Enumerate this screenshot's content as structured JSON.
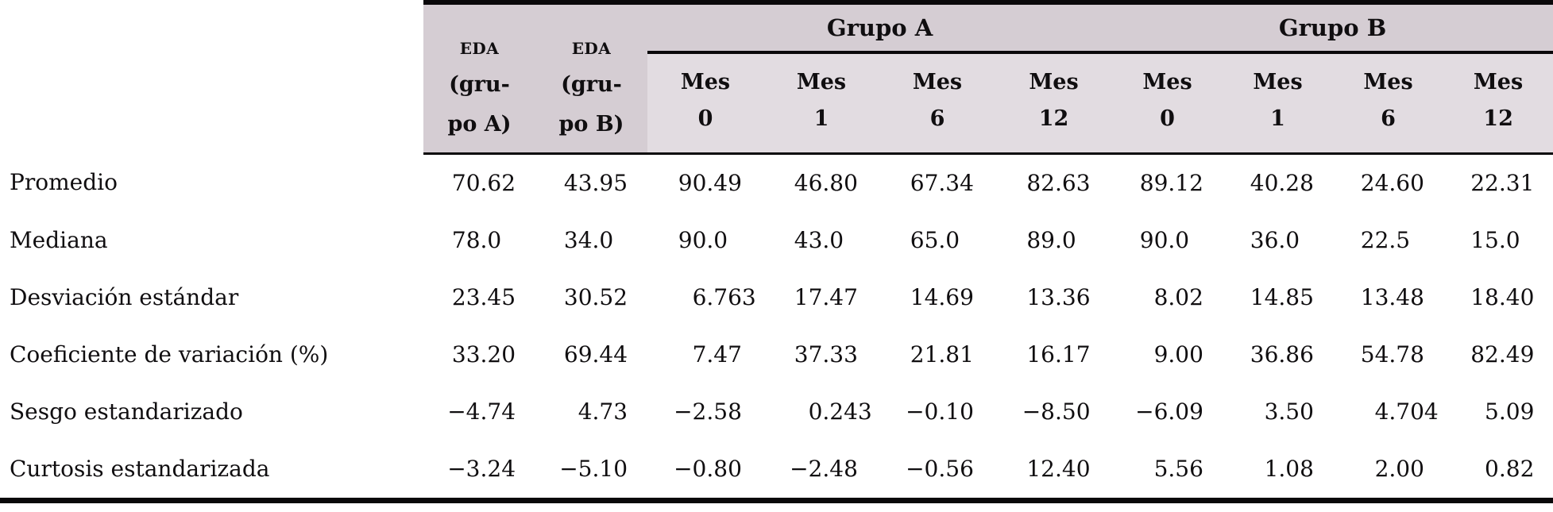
{
  "colors": {
    "header_dark": "#d5cdd3",
    "header_light": "#e2dce1",
    "rule": "#0a080a",
    "text": "#100e10",
    "page_background": "#ffffff"
  },
  "table": {
    "row_label_header": "",
    "eda_columns": [
      {
        "abbr": "EDA",
        "line2": "(gru-",
        "line3": "po A)"
      },
      {
        "abbr": "EDA",
        "line2": "(gru-",
        "line3": "po B)"
      }
    ],
    "group_headers": [
      {
        "label": "Grupo A"
      },
      {
        "label": "Grupo B"
      }
    ],
    "mes_label": "Mes",
    "mes_columns": [
      {
        "group": "Grupo A",
        "month": "0"
      },
      {
        "group": "Grupo A",
        "month": "1"
      },
      {
        "group": "Grupo A",
        "month": "6"
      },
      {
        "group": "Grupo A",
        "month": "12"
      },
      {
        "group": "Grupo B",
        "month": "0"
      },
      {
        "group": "Grupo B",
        "month": "1"
      },
      {
        "group": "Grupo B",
        "month": "6"
      },
      {
        "group": "Grupo B",
        "month": "12"
      }
    ],
    "rows": [
      {
        "label": "Promedio",
        "values": [
          "70.62",
          "43.95",
          "90.49",
          "46.80",
          "67.34",
          "82.63",
          "89.12",
          "40.28",
          "24.60",
          "22.31"
        ]
      },
      {
        "label": "Mediana",
        "values": [
          "78.0",
          "34.0",
          "90.0",
          "43.0",
          "65.0",
          "89.0",
          "90.0",
          "36.0",
          "22.5",
          "15.0"
        ]
      },
      {
        "label": "Desviación estándar",
        "values": [
          "23.45",
          "30.52",
          "6.763",
          "17.47",
          "14.69",
          "13.36",
          "8.02",
          "14.85",
          "13.48",
          "18.40"
        ]
      },
      {
        "label": "Coeficiente de variación (%)",
        "values": [
          "33.20",
          "69.44",
          "7.47",
          "37.33",
          "21.81",
          "16.17",
          "9.00",
          "36.86",
          "54.78",
          "82.49"
        ]
      },
      {
        "label": "Sesgo estandarizado",
        "values": [
          "−4.74",
          "4.73",
          "−2.58",
          "0.243",
          "−0.10",
          "−8.50",
          "−6.09",
          "3.50",
          "4.704",
          "5.09"
        ]
      },
      {
        "label": "Curtosis estandarizada",
        "values": [
          "−3.24",
          "−5.10",
          "−0.80",
          "−2.48",
          "−0.56",
          "12.40",
          "5.56",
          "1.08",
          "2.00",
          "0.82"
        ]
      }
    ]
  }
}
